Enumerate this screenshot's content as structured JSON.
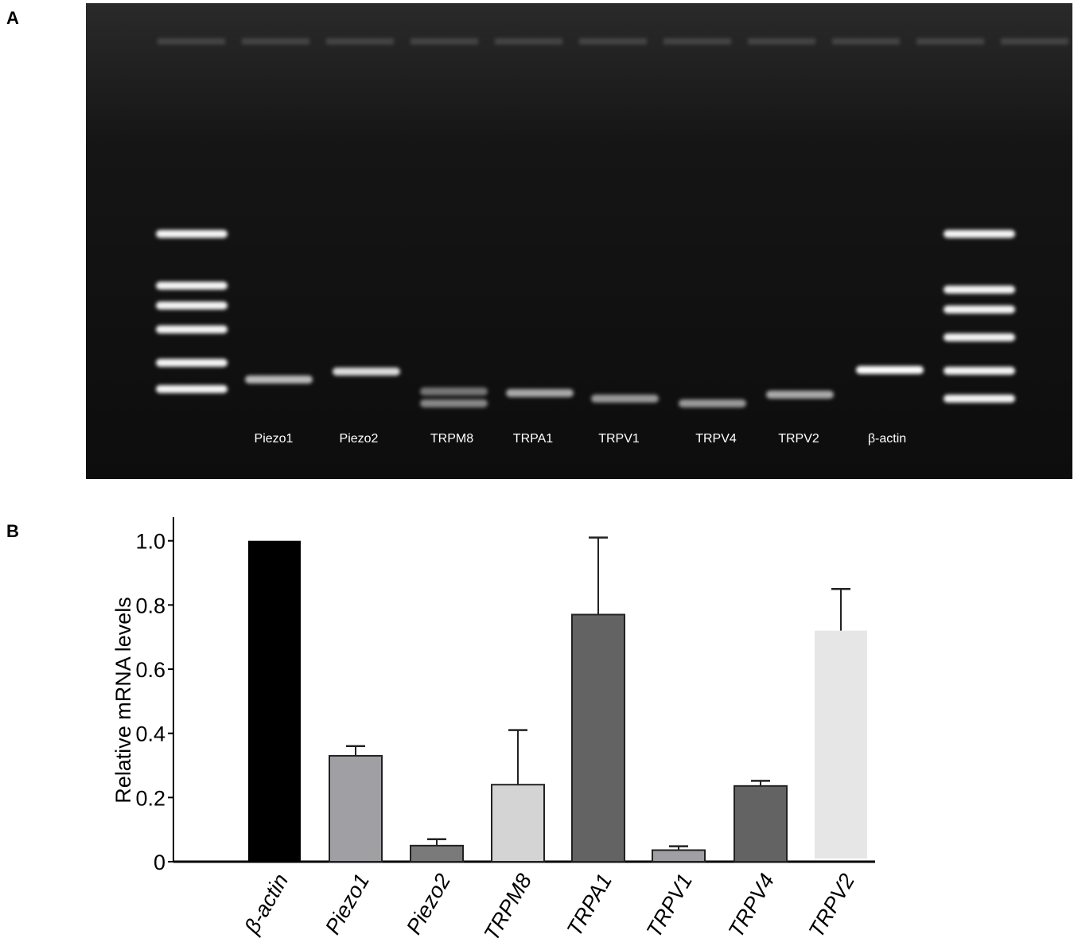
{
  "panel_a": {
    "label": "A",
    "lane_labels": [
      "Piezo1",
      "Piezo2",
      "TRPM8",
      "TRPA1",
      "TRPV1",
      "TRPV4",
      "TRPV2",
      "β-actin"
    ]
  },
  "panel_b": {
    "label": "B"
  },
  "chart_data": {
    "type": "bar",
    "categories": [
      "β-actin",
      "Piezo1",
      "Piezo2",
      "TRPM8",
      "TRPA1",
      "TRPV1",
      "TRPV4",
      "TRPV2"
    ],
    "values": [
      1.0,
      0.33,
      0.05,
      0.24,
      0.77,
      0.036,
      0.236,
      0.72
    ],
    "error_upper": [
      null,
      0.36,
      0.07,
      0.41,
      1.01,
      0.048,
      0.252,
      0.85
    ],
    "colors": [
      "#000000",
      "#a0a0a4",
      "#7a7a7a",
      "#d4d4d4",
      "#636363",
      "#a0a0a4",
      "#636363",
      "#e6e6e6"
    ],
    "title": "",
    "xlabel": "",
    "ylabel": "Relative mRNA levels",
    "ylim": [
      0,
      1.05
    ],
    "yticks": [
      0,
      0.2,
      0.4,
      0.6,
      0.8,
      1.0
    ],
    "ytick_labels": [
      "0",
      "0.2",
      "0.4",
      "0.6",
      "0.8",
      "1.0"
    ],
    "grid": false
  }
}
